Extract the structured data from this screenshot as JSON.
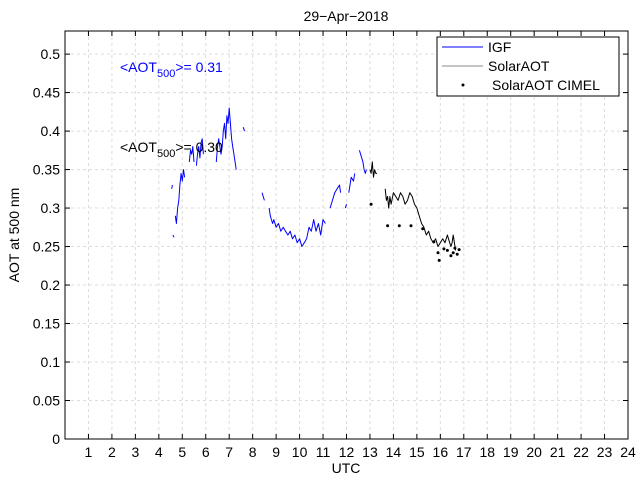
{
  "chart_data": {
    "type": "line",
    "title": "29−Apr−2018",
    "xlabel": "UTC",
    "ylabel": "AOT at 500 nm",
    "xlim": [
      0,
      24
    ],
    "ylim": [
      0,
      0.53
    ],
    "x_ticks": [
      1,
      2,
      3,
      4,
      5,
      6,
      7,
      8,
      9,
      10,
      11,
      12,
      13,
      14,
      15,
      16,
      17,
      18,
      19,
      20,
      21,
      22,
      23,
      24
    ],
    "y_ticks": [
      0,
      0.05,
      0.1,
      0.15,
      0.2,
      0.25,
      0.3,
      0.35,
      0.4,
      0.45,
      0.5
    ],
    "grid": true,
    "legend_position": "top-right",
    "annotations": [
      {
        "prefix": "<AOT",
        "subscript": "500",
        "suffix": ">= 0.31",
        "color": "#0000ff"
      },
      {
        "prefix": "<AOT",
        "subscript": "500",
        "suffix": ">= 0.30",
        "color": "#000000"
      }
    ],
    "series": [
      {
        "name": "IGF",
        "style": "line",
        "color": "#0000ff",
        "segments": [
          [
            [
              4.55,
              0.325
            ],
            [
              4.58,
              0.33
            ]
          ],
          [
            [
              4.6,
              0.265
            ],
            [
              4.65,
              0.262
            ]
          ],
          [
            [
              4.7,
              0.29
            ],
            [
              4.75,
              0.28
            ],
            [
              4.8,
              0.3
            ],
            [
              4.85,
              0.31
            ],
            [
              4.9,
              0.33
            ],
            [
              4.95,
              0.345
            ],
            [
              5.0,
              0.335
            ],
            [
              5.05,
              0.35
            ],
            [
              5.1,
              0.34
            ]
          ],
          [
            [
              5.3,
              0.36
            ],
            [
              5.35,
              0.375
            ],
            [
              5.4,
              0.37
            ],
            [
              5.45,
              0.38
            ],
            [
              5.5,
              0.36
            ]
          ],
          [
            [
              5.6,
              0.355
            ],
            [
              5.65,
              0.37
            ],
            [
              5.7,
              0.38
            ],
            [
              5.75,
              0.365
            ],
            [
              5.8,
              0.385
            ],
            [
              5.85,
              0.39
            ],
            [
              5.9,
              0.37
            ]
          ],
          [
            [
              6.45,
              0.36
            ],
            [
              6.5,
              0.38
            ],
            [
              6.55,
              0.39
            ],
            [
              6.6,
              0.38
            ],
            [
              6.65,
              0.37
            ],
            [
              6.7,
              0.38
            ],
            [
              6.75,
              0.4
            ],
            [
              6.8,
              0.41
            ],
            [
              6.85,
              0.39
            ],
            [
              6.9,
              0.42
            ],
            [
              6.95,
              0.41
            ],
            [
              7.0,
              0.43
            ],
            [
              7.05,
              0.41
            ],
            [
              7.1,
              0.39
            ],
            [
              7.15,
              0.38
            ],
            [
              7.2,
              0.37
            ],
            [
              7.25,
              0.36
            ],
            [
              7.3,
              0.35
            ]
          ],
          [
            [
              7.6,
              0.405
            ],
            [
              7.65,
              0.4
            ]
          ],
          [
            [
              8.4,
              0.32
            ],
            [
              8.45,
              0.315
            ],
            [
              8.5,
              0.31
            ]
          ],
          [
            [
              8.7,
              0.3
            ],
            [
              8.75,
              0.29
            ],
            [
              8.8,
              0.285
            ],
            [
              8.85,
              0.28
            ],
            [
              8.9,
              0.285
            ],
            [
              8.95,
              0.28
            ],
            [
              9.0,
              0.275
            ],
            [
              9.1,
              0.28
            ],
            [
              9.2,
              0.27
            ],
            [
              9.3,
              0.275
            ],
            [
              9.4,
              0.27
            ],
            [
              9.5,
              0.265
            ],
            [
              9.6,
              0.27
            ],
            [
              9.7,
              0.26
            ],
            [
              9.8,
              0.265
            ],
            [
              9.9,
              0.255
            ],
            [
              10.0,
              0.26
            ],
            [
              10.1,
              0.25
            ],
            [
              10.2,
              0.255
            ],
            [
              10.3,
              0.26
            ],
            [
              10.4,
              0.275
            ],
            [
              10.5,
              0.27
            ],
            [
              10.6,
              0.285
            ],
            [
              10.7,
              0.27
            ],
            [
              10.8,
              0.28
            ],
            [
              10.9,
              0.265
            ],
            [
              11.0,
              0.285
            ],
            [
              11.1,
              0.28
            ]
          ],
          [
            [
              11.3,
              0.3
            ],
            [
              11.4,
              0.31
            ],
            [
              11.5,
              0.32
            ],
            [
              11.6,
              0.325
            ],
            [
              11.7,
              0.33
            ],
            [
              11.75,
              0.32
            ]
          ],
          [
            [
              11.95,
              0.3
            ],
            [
              12.0,
              0.305
            ]
          ],
          [
            [
              12.1,
              0.32
            ],
            [
              12.2,
              0.34
            ],
            [
              12.3,
              0.335
            ],
            [
              12.35,
              0.345
            ]
          ],
          [
            [
              12.55,
              0.375
            ],
            [
              12.6,
              0.37
            ],
            [
              12.7,
              0.36
            ],
            [
              12.75,
              0.35
            ],
            [
              12.8,
              0.345
            ],
            [
              12.85,
              0.35
            ]
          ]
        ]
      },
      {
        "name": "SolarAOT",
        "style": "line",
        "color": "#000000",
        "segments": [
          [
            [
              13.0,
              0.35
            ],
            [
              13.05,
              0.345
            ],
            [
              13.1,
              0.36
            ],
            [
              13.15,
              0.34
            ],
            [
              13.2,
              0.35
            ],
            [
              13.25,
              0.345
            ],
            [
              13.3,
              0.345
            ]
          ],
          [
            [
              13.65,
              0.325
            ],
            [
              13.7,
              0.31
            ],
            [
              13.75,
              0.315
            ],
            [
              13.8,
              0.3
            ],
            [
              13.85,
              0.315
            ],
            [
              13.9,
              0.305
            ],
            [
              14.0,
              0.32
            ],
            [
              14.1,
              0.315
            ],
            [
              14.2,
              0.31
            ],
            [
              14.3,
              0.32
            ],
            [
              14.4,
              0.315
            ],
            [
              14.5,
              0.305
            ],
            [
              14.6,
              0.31
            ],
            [
              14.7,
              0.32
            ],
            [
              14.8,
              0.315
            ],
            [
              14.9,
              0.305
            ],
            [
              15.0,
              0.3
            ],
            [
              15.1,
              0.29
            ],
            [
              15.2,
              0.28
            ],
            [
              15.3,
              0.275
            ],
            [
              15.4,
              0.265
            ],
            [
              15.5,
              0.27
            ],
            [
              15.6,
              0.26
            ],
            [
              15.7,
              0.255
            ],
            [
              15.8,
              0.26
            ],
            [
              15.9,
              0.25
            ],
            [
              16.0,
              0.255
            ],
            [
              16.1,
              0.26
            ],
            [
              16.2,
              0.255
            ],
            [
              16.3,
              0.265
            ],
            [
              16.35,
              0.26
            ],
            [
              16.4,
              0.255
            ],
            [
              16.45,
              0.25
            ],
            [
              16.5,
              0.255
            ],
            [
              16.55,
              0.265
            ],
            [
              16.6,
              0.255
            ],
            [
              16.65,
              0.245
            ]
          ]
        ]
      },
      {
        "name": "SolarAOT CIMEL",
        "style": "points",
        "color": "#000000",
        "points": [
          [
            13.05,
            0.305
          ],
          [
            13.75,
            0.277
          ],
          [
            14.25,
            0.277
          ],
          [
            14.75,
            0.277
          ],
          [
            15.25,
            0.273
          ],
          [
            15.72,
            0.256
          ],
          [
            15.9,
            0.242
          ],
          [
            15.95,
            0.232
          ],
          [
            16.15,
            0.247
          ],
          [
            16.3,
            0.245
          ],
          [
            16.45,
            0.238
          ],
          [
            16.55,
            0.242
          ],
          [
            16.62,
            0.248
          ],
          [
            16.72,
            0.24
          ],
          [
            16.8,
            0.246
          ]
        ]
      }
    ]
  }
}
